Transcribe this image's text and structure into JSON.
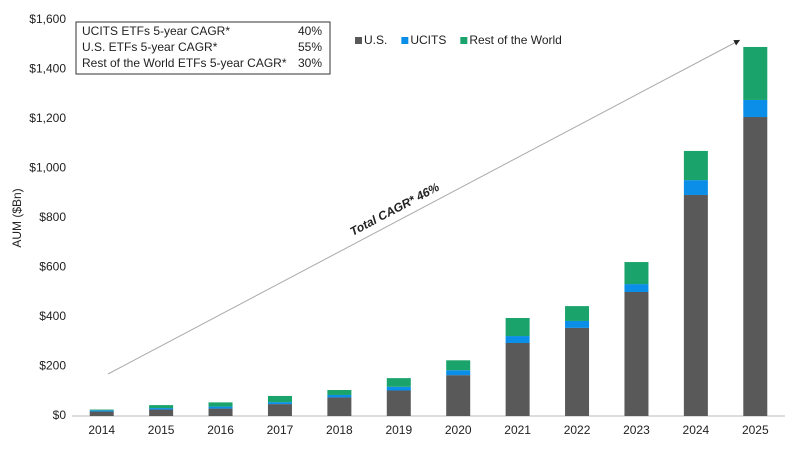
{
  "chart_data": {
    "type": "stacked_bar",
    "y_label": "AUM ($Bn)",
    "categories": [
      "2014",
      "2015",
      "2016",
      "2017",
      "2018",
      "2019",
      "2020",
      "2021",
      "2022",
      "2023",
      "2024",
      "2025"
    ],
    "series": [
      {
        "name": "U.S.",
        "color": "#595959",
        "values": [
          18,
          26,
          30,
          48,
          75,
          103,
          165,
          295,
          356,
          501,
          893,
          1208
        ]
      },
      {
        "name": "UCITS",
        "color": "#0a8ee8",
        "values": [
          5,
          6,
          8,
          8,
          10,
          15,
          20,
          28,
          28,
          32,
          60,
          69
        ]
      },
      {
        "name": "Rest of the World",
        "color": "#1aa36a",
        "values": [
          3,
          12,
          17,
          25,
          20,
          35,
          40,
          73,
          60,
          89,
          118,
          214
        ]
      }
    ],
    "ylim": [
      0,
      1600
    ],
    "yticks": [
      {
        "value": 0,
        "label": "$0"
      },
      {
        "value": 200,
        "label": "$200"
      },
      {
        "value": 400,
        "label": "$400"
      },
      {
        "value": 600,
        "label": "$600"
      },
      {
        "value": 800,
        "label": "$800"
      },
      {
        "value": 1000,
        "label": "$1,000"
      },
      {
        "value": 1200,
        "label": "$1,200"
      },
      {
        "value": 1400,
        "label": "$1,400"
      },
      {
        "value": 1600,
        "label": "$1,600"
      }
    ],
    "cagr_table": [
      {
        "label": "UCITS ETFs 5-year CAGR*",
        "value": "40%"
      },
      {
        "label": "U.S. ETFs 5-year CAGR*",
        "value": "55%"
      },
      {
        "label": "Rest of the World ETFs 5-year CAGR*",
        "value": "30%"
      }
    ],
    "arrow_label": "Total CAGR* 46%"
  }
}
